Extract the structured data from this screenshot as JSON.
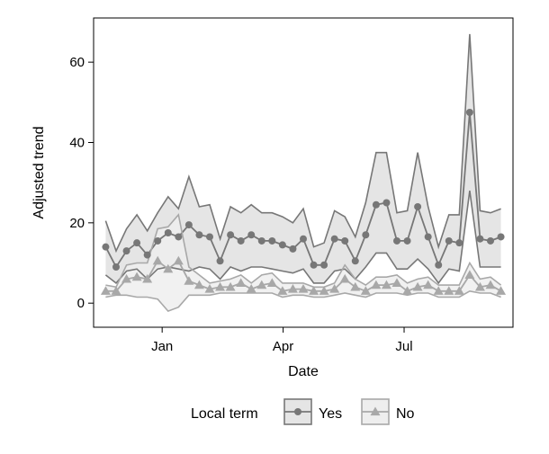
{
  "chart_data": {
    "type": "line",
    "xlabel": "Date",
    "ylabel": "Adjusted trend",
    "xlim": [
      -0.5,
      51.5
    ],
    "ylim": [
      -6,
      71
    ],
    "x_ticks": [
      {
        "x": 8,
        "label": "Jan"
      },
      {
        "x": 23,
        "label": "Apr"
      },
      {
        "x": 38,
        "label": "Jul"
      }
    ],
    "y_ticks": [
      0,
      20,
      40,
      60
    ],
    "legend": {
      "title": "Local term",
      "position": "bottom"
    },
    "series": [
      {
        "name": "Yes",
        "color": "#777777",
        "band_fill": "#e5e5e5",
        "marker": "circle",
        "values": [
          14,
          9,
          13,
          15,
          12,
          15.5,
          17.5,
          16.5,
          19.5,
          17,
          16.5,
          10.5,
          17,
          15.5,
          17,
          15.5,
          15.5,
          14.5,
          13.5,
          16,
          9.5,
          9.5,
          16,
          15.5,
          10.5,
          17,
          24.5,
          25,
          15.5,
          15.5,
          24,
          16.5,
          9.5,
          15.5,
          15,
          47.5,
          16,
          15.5,
          16.5
        ],
        "upper": [
          20.5,
          13,
          18.5,
          22,
          18,
          22.5,
          26.5,
          23.5,
          31.5,
          24,
          24.5,
          16,
          24,
          22.5,
          24.5,
          22.5,
          22.5,
          21.5,
          20,
          23.5,
          14,
          15,
          23,
          21.5,
          16.5,
          25,
          37.5,
          37.5,
          22.5,
          23,
          37.5,
          24,
          14,
          22,
          22,
          67,
          23,
          22.5,
          23.5
        ],
        "lower": [
          7,
          5,
          8,
          8.5,
          6,
          8.5,
          9,
          8.5,
          8,
          9,
          8.5,
          6,
          9,
          8,
          9,
          9,
          8.5,
          8,
          7.5,
          8.5,
          5,
          5,
          8,
          8.5,
          6,
          9,
          12.5,
          12.5,
          8.5,
          8.5,
          11,
          8.5,
          5,
          8.5,
          8,
          28,
          9,
          9,
          9
        ]
      },
      {
        "name": "No",
        "color": "#a8a8a8",
        "band_fill": "#eeeeee",
        "marker": "triangle",
        "values": [
          3,
          3,
          6,
          6.5,
          6,
          10.5,
          8.5,
          10.5,
          5.5,
          4.5,
          3.5,
          4,
          4,
          5,
          3.5,
          4.5,
          5,
          3,
          3.5,
          3.5,
          3,
          3,
          3.5,
          6,
          4,
          3,
          4.5,
          4.5,
          5,
          3,
          4,
          4.5,
          3,
          3,
          3,
          7,
          4,
          4.5,
          3
        ],
        "upper": [
          4.5,
          4,
          9.5,
          10,
          10,
          18.5,
          19,
          22,
          9,
          7,
          5,
          5.5,
          6,
          7,
          5,
          7,
          7.5,
          5,
          5,
          5,
          4,
          4,
          5,
          9.5,
          6,
          4.5,
          6.5,
          6.5,
          7,
          5,
          6,
          6.5,
          4.5,
          4.5,
          4.5,
          10,
          6,
          6.5,
          4.5
        ],
        "lower": [
          1.5,
          2,
          2,
          1.5,
          1.5,
          1,
          -2,
          -1,
          2,
          2,
          2,
          2.5,
          2.5,
          2.5,
          2.5,
          2.5,
          2.5,
          1.5,
          2,
          2,
          1.5,
          1.5,
          2,
          2.5,
          2,
          1.5,
          2.5,
          2.5,
          2.5,
          2,
          2.5,
          2.5,
          1.5,
          1.5,
          1.5,
          3,
          2.5,
          2.5,
          1.5
        ]
      }
    ],
    "grid": false
  }
}
